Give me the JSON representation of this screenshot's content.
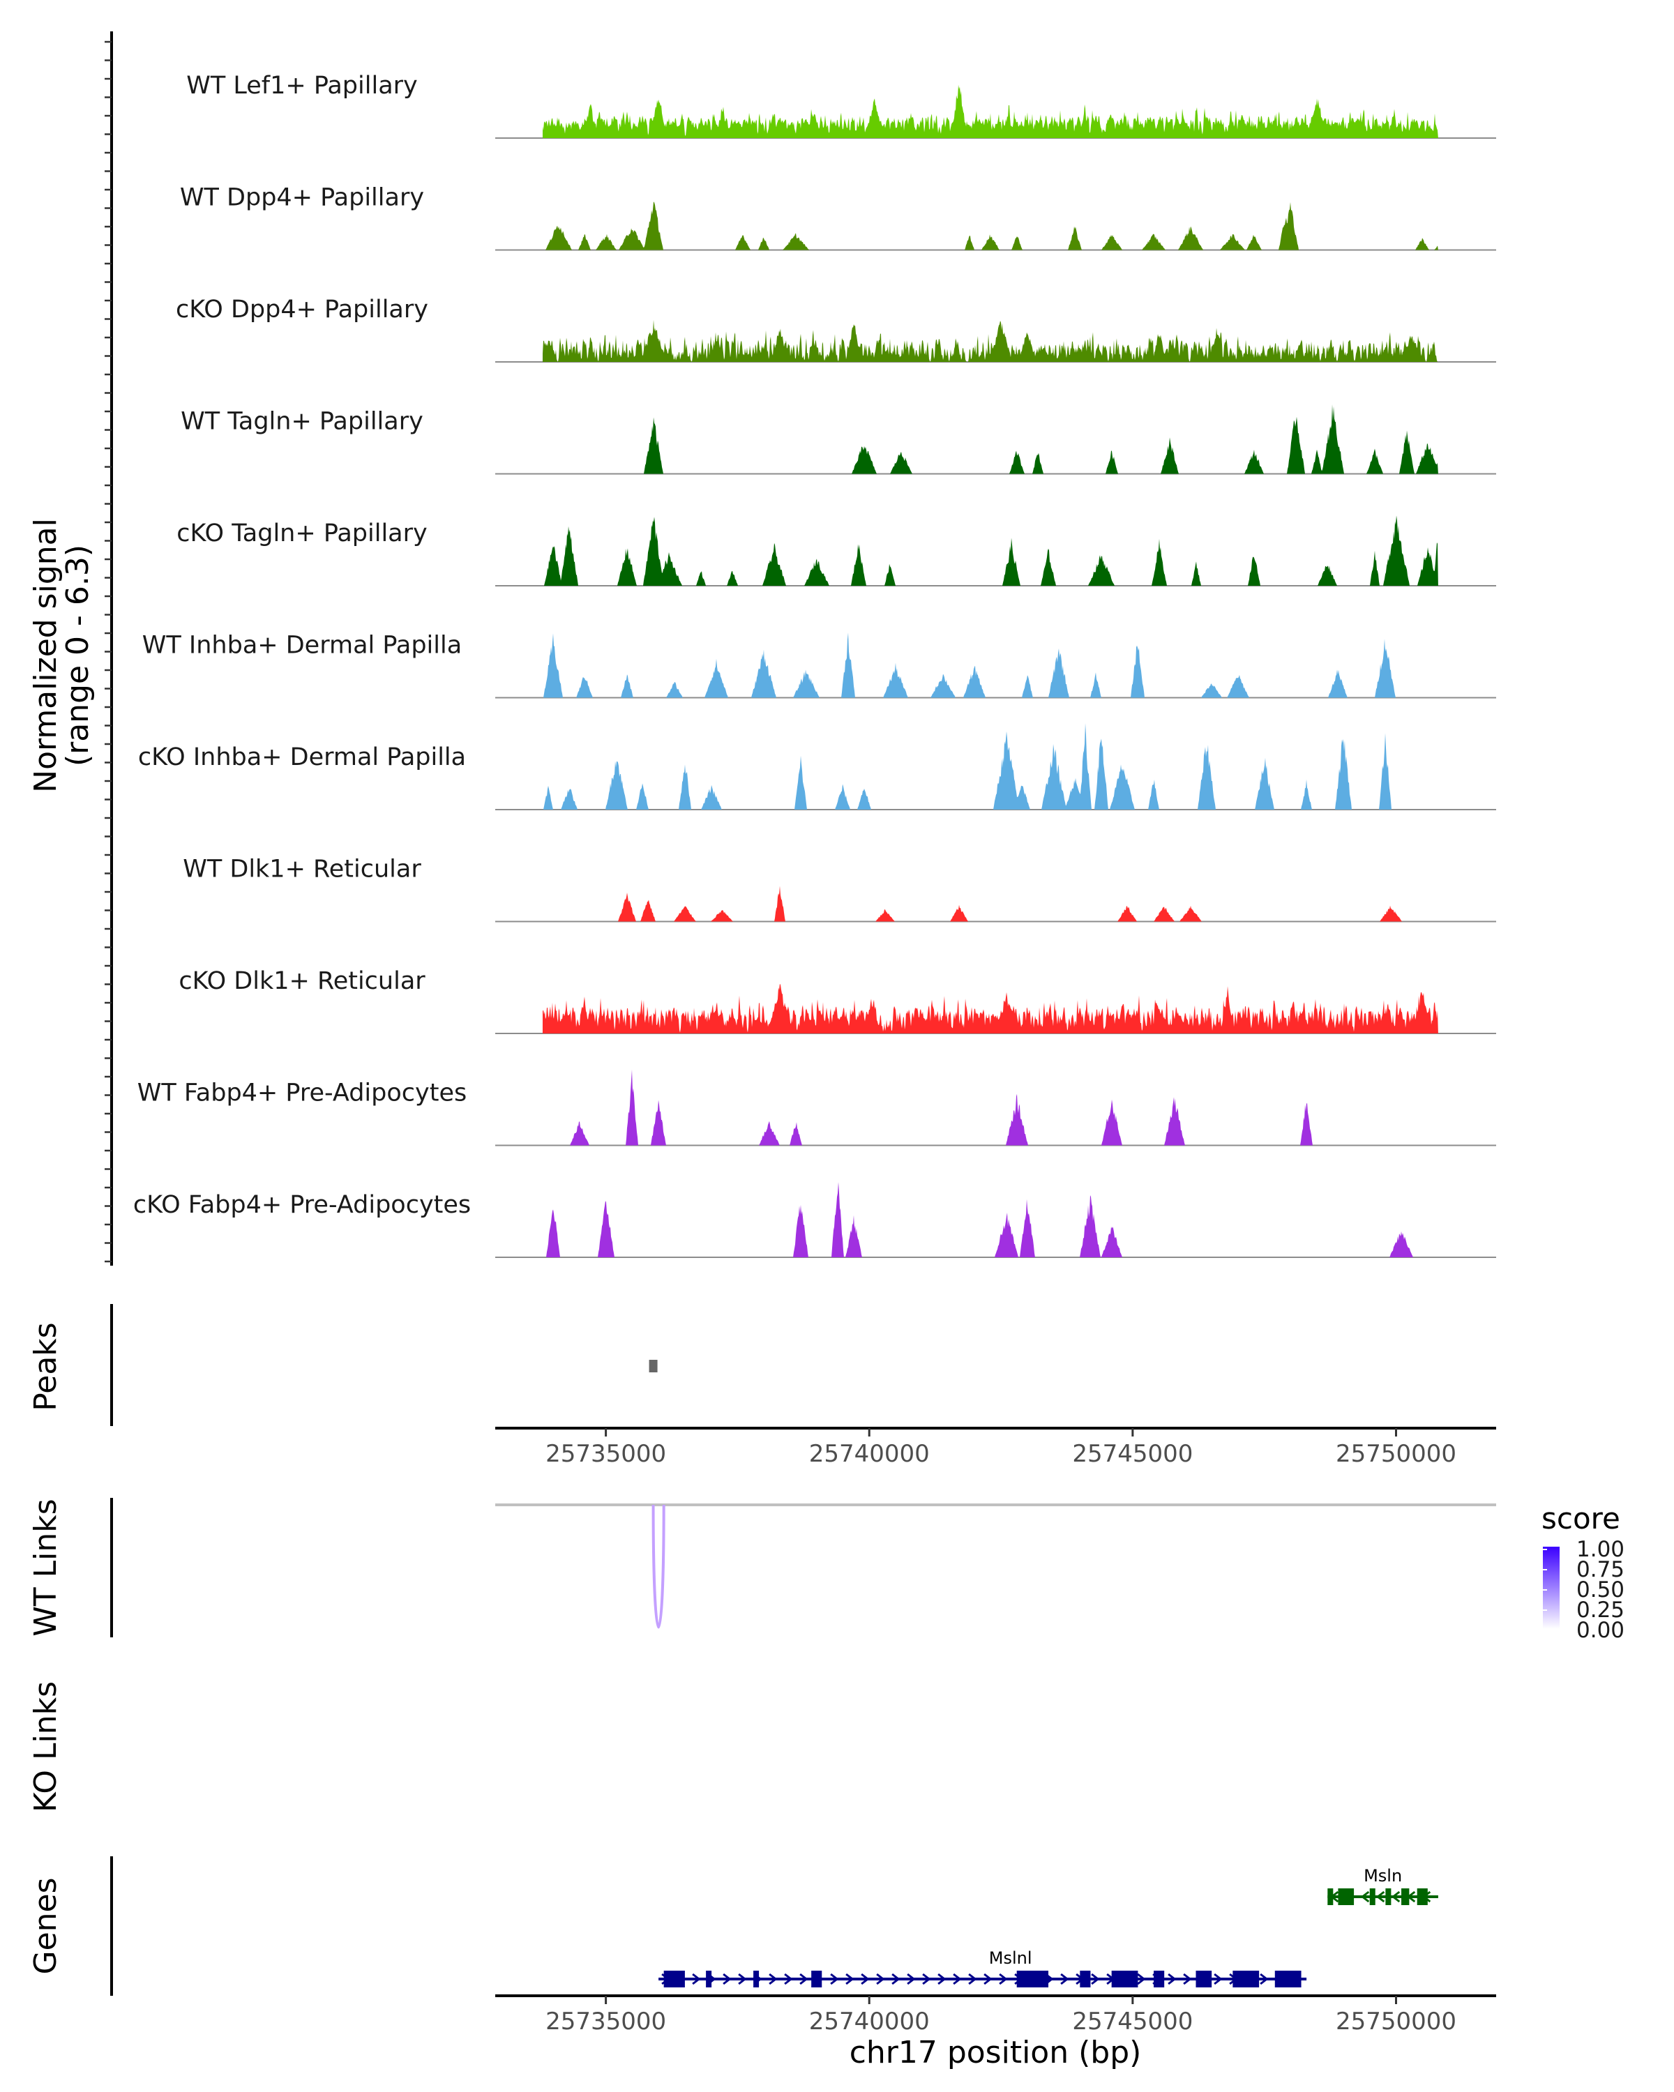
{
  "chart_data": {
    "type": "area",
    "title": "",
    "xlabel": "chr17 position (bp)",
    "ylabel": "Normalized signal\n(range 0 - 6.3)",
    "ylabel_line1": "Normalized signal",
    "ylabel_line2": "(range 0 - 6.3)",
    "signal_range": [
      0,
      6.3
    ],
    "xlim": [
      25732900,
      25751900
    ],
    "x_ticks": [
      25735000,
      25740000,
      25745000,
      25750000
    ],
    "x_tick_labels": [
      "25735000",
      "25740000",
      "25745000",
      "25750000"
    ],
    "region_span": [
      25733800,
      25750800
    ],
    "series": [
      {
        "name": "WT Lef1+ Papillary",
        "color": "#66cc00",
        "mode": "dense",
        "density": 0.95,
        "height": 0.28,
        "peaks": [
          [
            25734700,
            0.45
          ],
          [
            25736000,
            0.6
          ],
          [
            25741700,
            0.75
          ],
          [
            25740100,
            0.5
          ],
          [
            25748500,
            0.55
          ]
        ]
      },
      {
        "name": "WT Dpp4+ Papillary",
        "color": "#4e8b00",
        "mode": "sparse",
        "peaks": [
          [
            25734100,
            0.35
          ],
          [
            25734600,
            0.2
          ],
          [
            25735000,
            0.2
          ],
          [
            25735500,
            0.3
          ],
          [
            25735900,
            0.65
          ],
          [
            25737600,
            0.2
          ],
          [
            25738000,
            0.18
          ],
          [
            25738600,
            0.2
          ],
          [
            25741900,
            0.2
          ],
          [
            25742300,
            0.2
          ],
          [
            25742800,
            0.2
          ],
          [
            25743900,
            0.3
          ],
          [
            25744600,
            0.2
          ],
          [
            25745400,
            0.2
          ],
          [
            25746100,
            0.3
          ],
          [
            25746900,
            0.2
          ],
          [
            25747300,
            0.2
          ],
          [
            25747900,
            0.45
          ],
          [
            25748000,
            0.6
          ],
          [
            25750500,
            0.15
          ],
          [
            25750900,
            0.15
          ]
        ]
      },
      {
        "name": "cKO Dpp4+ Papillary",
        "color": "#4e8b00",
        "mode": "dense",
        "density": 0.7,
        "height": 0.3,
        "peaks": [
          [
            25735900,
            0.5
          ],
          [
            25738300,
            0.45
          ],
          [
            25739700,
            0.55
          ],
          [
            25742500,
            0.55
          ],
          [
            25743000,
            0.4
          ],
          [
            25745500,
            0.4
          ],
          [
            25746600,
            0.45
          ],
          [
            25750300,
            0.35
          ]
        ]
      },
      {
        "name": "WT Tagln+ Papillary",
        "color": "#006400",
        "mode": "sparse",
        "peaks": [
          [
            25735900,
            0.7
          ],
          [
            25739900,
            0.4
          ],
          [
            25740600,
            0.3
          ],
          [
            25742800,
            0.3
          ],
          [
            25743200,
            0.3
          ],
          [
            25744600,
            0.3
          ],
          [
            25745700,
            0.45
          ],
          [
            25747300,
            0.3
          ],
          [
            25748100,
            0.8
          ],
          [
            25748500,
            0.3
          ],
          [
            25748800,
            0.85
          ],
          [
            25749600,
            0.3
          ],
          [
            25750200,
            0.55
          ],
          [
            25750600,
            0.4
          ],
          [
            25750900,
            0.3
          ]
        ]
      },
      {
        "name": "cKO Tagln+ Papillary",
        "color": "#006400",
        "mode": "sparse",
        "peaks": [
          [
            25734000,
            0.55
          ],
          [
            25734300,
            0.8
          ],
          [
            25735400,
            0.5
          ],
          [
            25735900,
            0.9
          ],
          [
            25736200,
            0.4
          ],
          [
            25736800,
            0.2
          ],
          [
            25737400,
            0.2
          ],
          [
            25738200,
            0.5
          ],
          [
            25739000,
            0.35
          ],
          [
            25739800,
            0.55
          ],
          [
            25740400,
            0.3
          ],
          [
            25742700,
            0.55
          ],
          [
            25743400,
            0.45
          ],
          [
            25744400,
            0.4
          ],
          [
            25745500,
            0.55
          ],
          [
            25746200,
            0.3
          ],
          [
            25747300,
            0.45
          ],
          [
            25748700,
            0.3
          ],
          [
            25749600,
            0.45
          ],
          [
            25750000,
            0.9
          ],
          [
            25750600,
            0.5
          ],
          [
            25750800,
            0.7
          ]
        ]
      },
      {
        "name": "WT Inhba+ Dermal Papilla",
        "color": "#5dade2",
        "mode": "sparse",
        "peaks": [
          [
            25734000,
            0.75
          ],
          [
            25734600,
            0.3
          ],
          [
            25735400,
            0.3
          ],
          [
            25736300,
            0.2
          ],
          [
            25737100,
            0.45
          ],
          [
            25738000,
            0.6
          ],
          [
            25738800,
            0.35
          ],
          [
            25739600,
            0.8
          ],
          [
            25740500,
            0.4
          ],
          [
            25741400,
            0.3
          ],
          [
            25742000,
            0.4
          ],
          [
            25743000,
            0.3
          ],
          [
            25743600,
            0.65
          ],
          [
            25744300,
            0.3
          ],
          [
            25745100,
            0.75
          ],
          [
            25746500,
            0.2
          ],
          [
            25747000,
            0.3
          ],
          [
            25748900,
            0.35
          ],
          [
            25749800,
            0.75
          ]
        ]
      },
      {
        "name": "cKO Inhba+ Dermal Papilla",
        "color": "#5dade2",
        "mode": "sparse",
        "peaks": [
          [
            25733900,
            0.3
          ],
          [
            25734300,
            0.3
          ],
          [
            25735200,
            0.7
          ],
          [
            25735700,
            0.35
          ],
          [
            25736500,
            0.65
          ],
          [
            25737000,
            0.3
          ],
          [
            25738700,
            0.65
          ],
          [
            25739500,
            0.3
          ],
          [
            25739900,
            0.3
          ],
          [
            25742600,
            0.95
          ],
          [
            25742900,
            0.35
          ],
          [
            25743500,
            0.8
          ],
          [
            25743900,
            0.4
          ],
          [
            25744100,
            1.0
          ],
          [
            25744400,
            1.0
          ],
          [
            25744800,
            0.6
          ],
          [
            25745400,
            0.4
          ],
          [
            25746400,
            0.9
          ],
          [
            25747500,
            0.65
          ],
          [
            25748300,
            0.35
          ],
          [
            25749000,
            1.0
          ],
          [
            25749800,
            0.95
          ]
        ]
      },
      {
        "name": "WT Dlk1+ Reticular",
        "color": "#ff2a2a",
        "mode": "sparse",
        "peaks": [
          [
            25735400,
            0.35
          ],
          [
            25735800,
            0.3
          ],
          [
            25736500,
            0.2
          ],
          [
            25737200,
            0.15
          ],
          [
            25738300,
            0.45
          ],
          [
            25740300,
            0.15
          ],
          [
            25741700,
            0.2
          ],
          [
            25744900,
            0.2
          ],
          [
            25745600,
            0.2
          ],
          [
            25746100,
            0.2
          ],
          [
            25749900,
            0.2
          ]
        ]
      },
      {
        "name": "cKO Dlk1+ Reticular",
        "color": "#ff2a2a",
        "mode": "dense",
        "density": 0.85,
        "height": 0.35,
        "peaks": [
          [
            25738300,
            0.6
          ],
          [
            25742600,
            0.5
          ],
          [
            25746800,
            0.55
          ],
          [
            25750500,
            0.55
          ]
        ]
      },
      {
        "name": "WT Fabp4+ Pre-Adipocytes",
        "color": "#a030e0",
        "mode": "sparse",
        "peaks": [
          [
            25734500,
            0.3
          ],
          [
            25735500,
            0.9
          ],
          [
            25736000,
            0.6
          ],
          [
            25738100,
            0.3
          ],
          [
            25738600,
            0.3
          ],
          [
            25742800,
            0.6
          ],
          [
            25744600,
            0.6
          ],
          [
            25745800,
            0.6
          ],
          [
            25748300,
            0.6
          ]
        ]
      },
      {
        "name": "cKO Fabp4+ Pre-Adipocytes",
        "color": "#a030e0",
        "mode": "sparse",
        "peaks": [
          [
            25734000,
            0.7
          ],
          [
            25735000,
            0.75
          ],
          [
            25738700,
            0.75
          ],
          [
            25739400,
            1.0
          ],
          [
            25739700,
            0.5
          ],
          [
            25742600,
            0.55
          ],
          [
            25743000,
            0.75
          ],
          [
            25744200,
            0.75
          ],
          [
            25744600,
            0.4
          ],
          [
            25750100,
            0.35
          ]
        ]
      }
    ],
    "peaks_track": {
      "label": "Peaks",
      "regions": [
        [
          25735900,
          25736000
        ]
      ],
      "color": "#666666"
    },
    "links_wt": {
      "label": "WT Links",
      "links": [
        [
          25735900,
          25736100,
          0.3
        ]
      ]
    },
    "links_ko": {
      "label": "KO Links",
      "links": []
    },
    "genes_track": {
      "label": "Genes",
      "genes": [
        {
          "name": "Msln",
          "start": 25748700,
          "end": 25750800,
          "strand": "-",
          "color": "#006400",
          "exons": [
            [
              25748700,
              25748800
            ],
            [
              25748900,
              25749200
            ],
            [
              25749500,
              25749600
            ],
            [
              25749800,
              25749900
            ],
            [
              25750100,
              25750250
            ],
            [
              25750400,
              25750600
            ]
          ]
        },
        {
          "name": "Mslnl",
          "start": 25736000,
          "end": 25748300,
          "strand": "+",
          "color": "#00008b",
          "exons": [
            [
              25736100,
              25736500
            ],
            [
              25736900,
              25737000
            ],
            [
              25737800,
              25737900
            ],
            [
              25738900,
              25739100
            ],
            [
              25742800,
              25743400
            ],
            [
              25744000,
              25744200
            ],
            [
              25744600,
              25745100
            ],
            [
              25745400,
              25745600
            ],
            [
              25746200,
              25746500
            ],
            [
              25746900,
              25747400
            ],
            [
              25747700,
              25748200
            ]
          ]
        }
      ]
    },
    "legend": {
      "title": "score",
      "ticks": [
        "1.00",
        "0.75",
        "0.50",
        "0.25",
        "0.00"
      ],
      "color_low": "#ffffff",
      "color_high": "#3b00ff"
    }
  }
}
